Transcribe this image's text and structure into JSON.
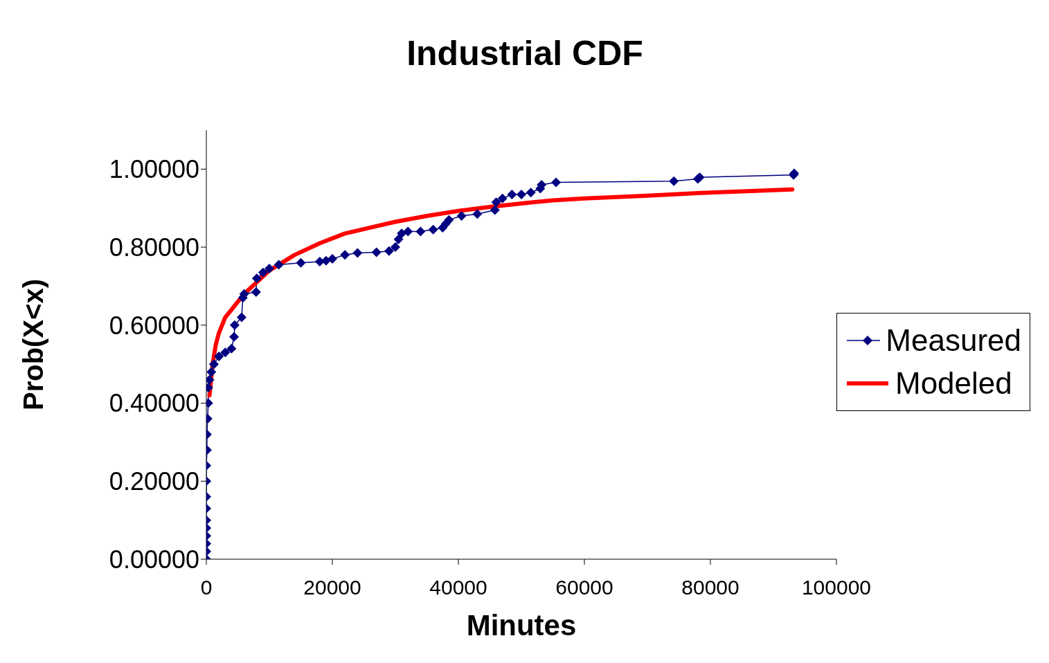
{
  "chart_data": {
    "type": "line",
    "title": "Industrial CDF",
    "xlabel": "Minutes",
    "ylabel": "Prob(X<x)",
    "xlim": [
      0,
      100000
    ],
    "xticks": [
      0,
      20000,
      40000,
      60000,
      80000,
      100000
    ],
    "ylim": [
      0,
      1.1
    ],
    "yticks": [
      {
        "value": 0,
        "label": "0.00000"
      },
      {
        "value": 0.2,
        "label": "0.20000"
      },
      {
        "value": 0.4,
        "label": "0.40000"
      },
      {
        "value": 0.6,
        "label": "0.60000"
      },
      {
        "value": 0.8,
        "label": "0.80000"
      },
      {
        "value": 1,
        "label": "1.00000"
      }
    ],
    "grid": false,
    "legend": "right",
    "line_style": "solid",
    "series": [
      {
        "name": "Measured",
        "color": "#000080",
        "marker": "diamond",
        "x": [
          0,
          0,
          0,
          0,
          0,
          0,
          0,
          0,
          0,
          0,
          100,
          100,
          200,
          300,
          300,
          500,
          800,
          1200,
          2000,
          3000,
          4000,
          4400,
          4500,
          5600,
          5800,
          6000,
          7900,
          8000,
          9000,
          10000,
          11500,
          15000,
          18000,
          19000,
          20000,
          22000,
          24000,
          27000,
          29000,
          30000,
          30500,
          31000,
          32000,
          34000,
          36000,
          37500,
          38000,
          38500,
          40500,
          43000,
          45800,
          46000,
          47000,
          48500,
          50000,
          51500,
          53000,
          53200,
          55500,
          74200,
          78000,
          78300,
          93200,
          93300
        ],
        "values": [
          0,
          0.02,
          0.04,
          0.06,
          0.08,
          0.1,
          0.13,
          0.16,
          0.2,
          0.24,
          0.28,
          0.32,
          0.36,
          0.4,
          0.44,
          0.46,
          0.48,
          0.5,
          0.52,
          0.53,
          0.54,
          0.57,
          0.6,
          0.62,
          0.67,
          0.68,
          0.685,
          0.72,
          0.735,
          0.745,
          0.755,
          0.76,
          0.763,
          0.765,
          0.77,
          0.78,
          0.785,
          0.787,
          0.79,
          0.8,
          0.82,
          0.835,
          0.84,
          0.84,
          0.845,
          0.85,
          0.86,
          0.87,
          0.88,
          0.885,
          0.895,
          0.915,
          0.925,
          0.935,
          0.935,
          0.94,
          0.95,
          0.96,
          0.966,
          0.969,
          0.975,
          0.979,
          0.985,
          0.989
        ]
      },
      {
        "name": "Modeled",
        "color": "#ff0000",
        "marker": "none",
        "x": [
          500,
          1000,
          1500,
          2000,
          3000,
          4000,
          6000,
          8000,
          10000,
          14000,
          18000,
          22000,
          26000,
          30000,
          35000,
          40000,
          45000,
          50000,
          55000,
          60000,
          70000,
          80000,
          93000
        ],
        "values": [
          0.42,
          0.5,
          0.55,
          0.58,
          0.62,
          0.64,
          0.68,
          0.71,
          0.74,
          0.78,
          0.81,
          0.835,
          0.85,
          0.865,
          0.88,
          0.893,
          0.903,
          0.912,
          0.92,
          0.925,
          0.932,
          0.94,
          0.948
        ]
      }
    ]
  }
}
